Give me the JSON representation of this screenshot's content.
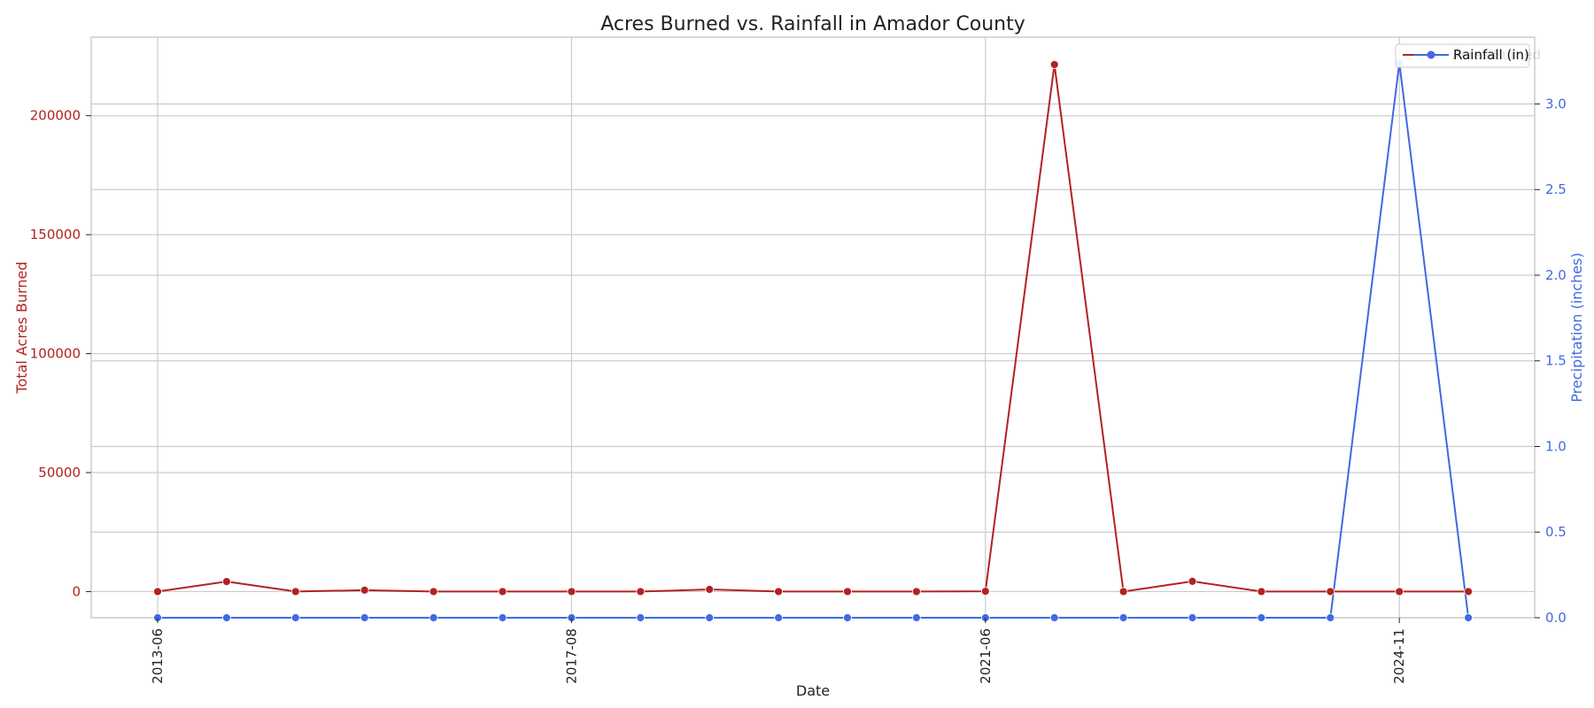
{
  "chart_data": {
    "type": "line",
    "title": "Acres Burned vs. Rainfall in Amador County",
    "xlabel": "Date",
    "ylabel_left": "Total Acres Burned",
    "ylabel_right": "Precipitation (inches)",
    "x": [
      "2013-06",
      "2014-06",
      "2015-06",
      "2016-06",
      "2017-06",
      "2017-07",
      "2017-08",
      "2018-08",
      "2019-08",
      "2020-08",
      "2020-09",
      "2021-05",
      "2021-06",
      "2021-07",
      "2022-07",
      "2023-07",
      "2023-09",
      "2024-09",
      "2024-11",
      "2024-12"
    ],
    "x_tick_labels": [
      "2013-06",
      "2017-08",
      "2021-06",
      "2024-11"
    ],
    "x_tick_indices": [
      0,
      6,
      12,
      18
    ],
    "left_ticks": [
      0,
      50000,
      100000,
      150000,
      200000
    ],
    "left_tick_labels": [
      "0",
      "50000",
      "100000",
      "150000",
      "200000"
    ],
    "right_ticks": [
      0.0,
      0.5,
      1.0,
      1.5,
      2.0,
      2.5,
      3.0
    ],
    "right_tick_labels": [
      "0.0",
      "0.5",
      "1.0",
      "1.5",
      "2.0",
      "2.5",
      "3.0"
    ],
    "ylim_left": [
      -11000,
      233000
    ],
    "ylim_right": [
      0,
      3.39
    ],
    "grid": true,
    "legend": {
      "placement": "top-right"
    },
    "series": [
      {
        "name": "Acres Burned",
        "axis": "left",
        "color": "#b22222",
        "values": [
          0,
          4200,
          0,
          600,
          0,
          0,
          0,
          0,
          900,
          0,
          0,
          0,
          100,
          221500,
          0,
          4300,
          0,
          0,
          0,
          0
        ]
      },
      {
        "name": "Rainfall (in)",
        "axis": "right",
        "color": "#4169e1",
        "values": [
          0,
          0,
          0,
          0,
          0,
          0,
          0,
          0,
          0,
          0,
          0,
          0,
          0,
          0,
          0,
          0,
          0,
          0,
          3.24,
          0
        ]
      }
    ]
  }
}
